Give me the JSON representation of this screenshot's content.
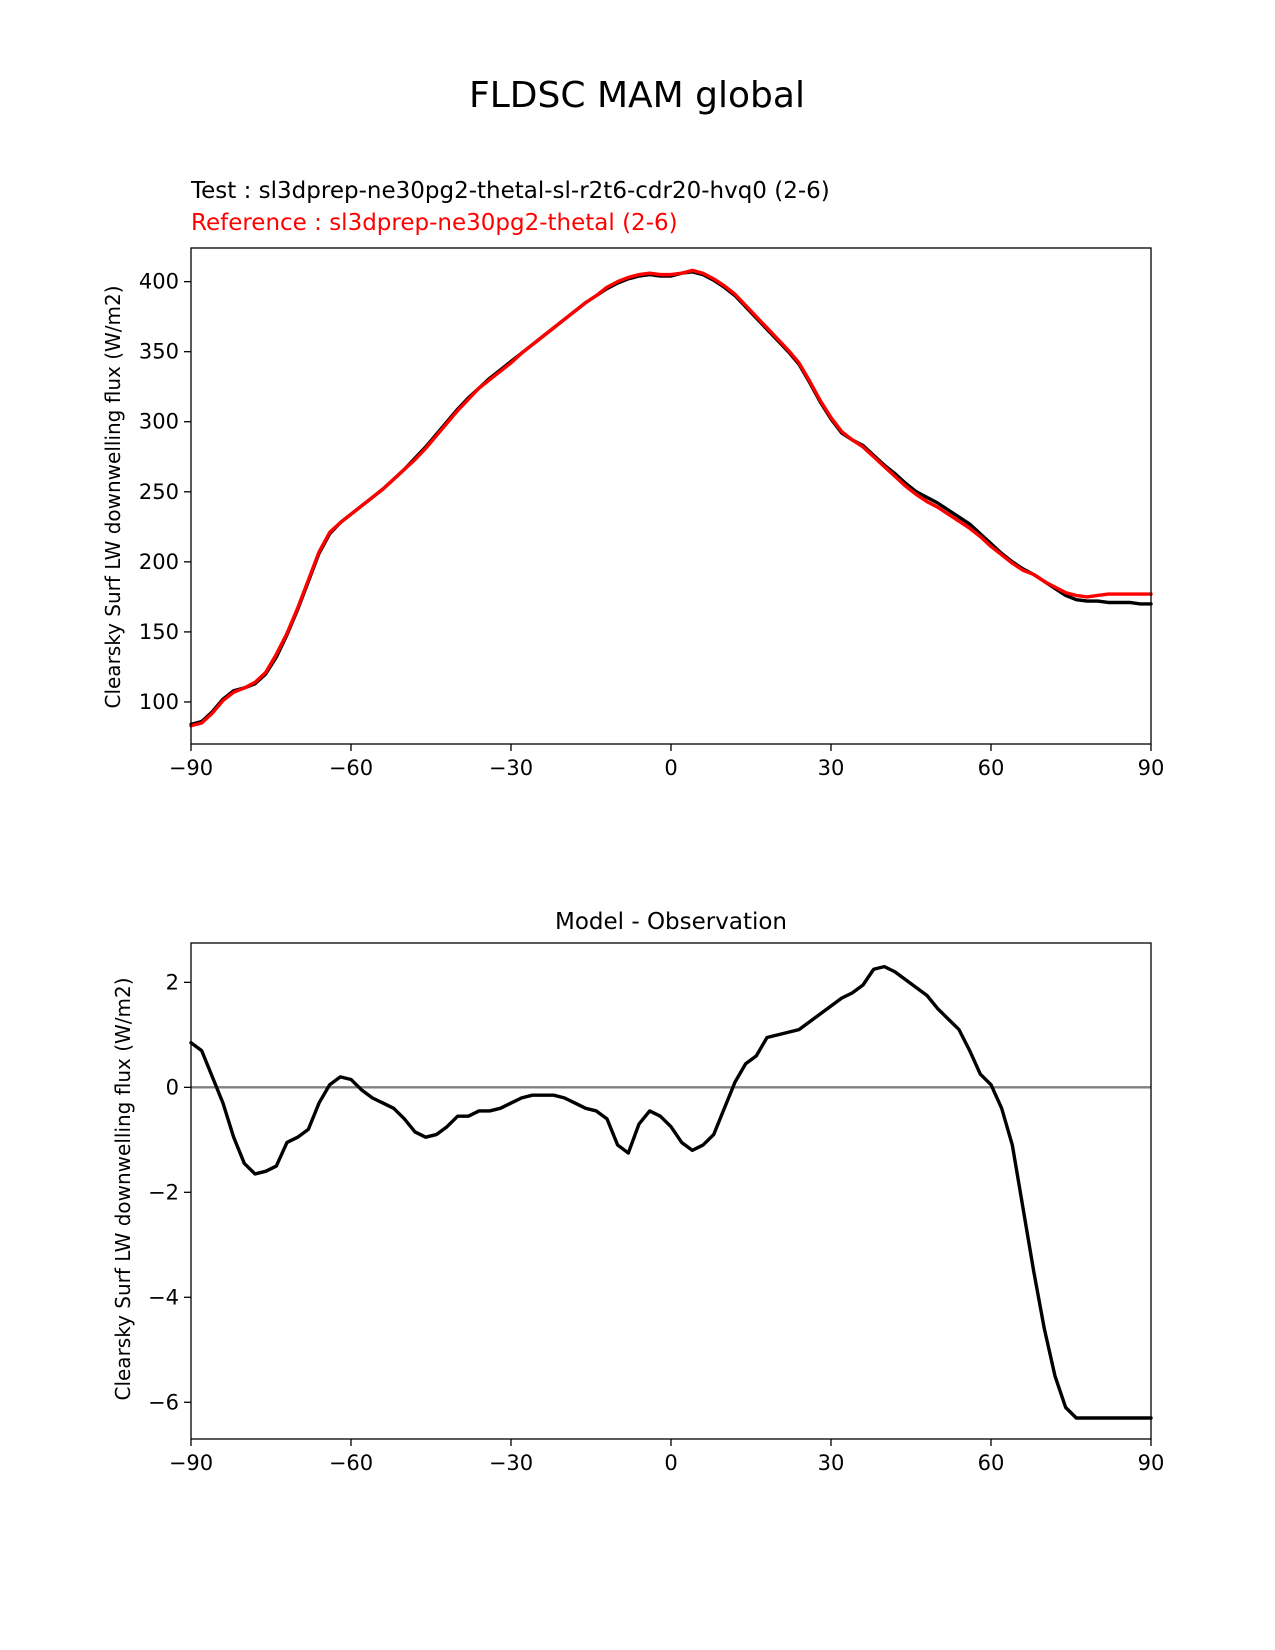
{
  "figure": {
    "title": "FLDSC MAM global"
  },
  "chart_data": [
    {
      "type": "line",
      "title_test": "Test : sl3dprep-ne30pg2-thetal-sl-r2t6-cdr20-hvq0 (2-6)",
      "title_reference": "Reference : sl3dprep-ne30pg2-thetal (2-6)",
      "xlabel": "",
      "ylabel": "Clearsky Surf LW downwelling flux (W/m2)",
      "xlim": [
        -90,
        90
      ],
      "ylim": [
        70,
        424
      ],
      "xticks": [
        -90,
        -60,
        -30,
        0,
        30,
        60,
        90
      ],
      "xtick_labels": [
        "−90",
        "−60",
        "−30",
        "0",
        "30",
        "60",
        "90"
      ],
      "yticks": [
        100,
        150,
        200,
        250,
        300,
        350,
        400
      ],
      "ytick_labels": [
        "100",
        "150",
        "200",
        "250",
        "300",
        "350",
        "400"
      ],
      "colors": {
        "test": "#000000",
        "reference": "#ff0000"
      },
      "x": [
        -90,
        -88,
        -86,
        -84,
        -82,
        -80,
        -78,
        -76,
        -74,
        -72,
        -70,
        -68,
        -66,
        -64,
        -62,
        -60,
        -58,
        -56,
        -54,
        -52,
        -50,
        -48,
        -46,
        -44,
        -42,
        -40,
        -38,
        -36,
        -34,
        -32,
        -30,
        -28,
        -26,
        -24,
        -22,
        -20,
        -18,
        -16,
        -14,
        -12,
        -10,
        -8,
        -6,
        -4,
        -2,
        0,
        2,
        4,
        6,
        8,
        10,
        12,
        14,
        16,
        18,
        20,
        22,
        24,
        26,
        28,
        30,
        32,
        34,
        36,
        38,
        40,
        42,
        44,
        46,
        48,
        50,
        52,
        54,
        56,
        58,
        60,
        62,
        64,
        66,
        68,
        70,
        72,
        74,
        76,
        78,
        80,
        82,
        84,
        86,
        88,
        90
      ],
      "series": [
        {
          "name": "test",
          "values": [
            84,
            86,
            93,
            102,
            108,
            110,
            113,
            120,
            132,
            148,
            166,
            186,
            206,
            220,
            228,
            234,
            240,
            246,
            252,
            259,
            266,
            274,
            282,
            291,
            300,
            309,
            317,
            324,
            331,
            337,
            343,
            349,
            355,
            361,
            367,
            373,
            379,
            385,
            390,
            395,
            399,
            402,
            404,
            405,
            404,
            404,
            406,
            407,
            405,
            401,
            396,
            390,
            382,
            374,
            366,
            358,
            350,
            341,
            328,
            314,
            302,
            292,
            287,
            283,
            276,
            269,
            263,
            256,
            250,
            246,
            242,
            237,
            232,
            227,
            220,
            213,
            206,
            200,
            195,
            191,
            186,
            181,
            176,
            173,
            172,
            172,
            171,
            171,
            171,
            170,
            170
          ]
        },
        {
          "name": "reference",
          "values": [
            83,
            85,
            92,
            101,
            107,
            110,
            114,
            121,
            134,
            149,
            167,
            187,
            207,
            221,
            228,
            234,
            240,
            246,
            252,
            259,
            266,
            273,
            281,
            290,
            299,
            308,
            316,
            324,
            330,
            336,
            342,
            349,
            355,
            361,
            367,
            373,
            379,
            385,
            390,
            396,
            400,
            403,
            405,
            406,
            405,
            405,
            406,
            408,
            406,
            402,
            397,
            391,
            383,
            375,
            367,
            359,
            351,
            342,
            329,
            315,
            303,
            293,
            287,
            282,
            275,
            268,
            261,
            254,
            248,
            243,
            239,
            234,
            229,
            224,
            218,
            211,
            205,
            199,
            194,
            191,
            186,
            182,
            178,
            176,
            175,
            176,
            177,
            177,
            177,
            177,
            177
          ]
        }
      ]
    },
    {
      "type": "line",
      "title": "Model - Observation",
      "xlabel": "",
      "ylabel": "Clearsky Surf LW downwelling flux (W/m2)",
      "xlim": [
        -90,
        90
      ],
      "ylim": [
        -6.7,
        2.75
      ],
      "xticks": [
        -90,
        -60,
        -30,
        0,
        30,
        60,
        90
      ],
      "xtick_labels": [
        "−90",
        "−60",
        "−30",
        "0",
        "30",
        "60",
        "90"
      ],
      "yticks": [
        -6,
        -4,
        -2,
        0,
        2
      ],
      "ytick_labels": [
        "−6",
        "−4",
        "−2",
        "0",
        "2"
      ],
      "zero_line": 0,
      "colors": {
        "diff": "#000000",
        "zero_line": "#808080"
      },
      "x": [
        -90,
        -88,
        -86,
        -84,
        -82,
        -80,
        -78,
        -76,
        -74,
        -72,
        -70,
        -68,
        -66,
        -64,
        -62,
        -60,
        -58,
        -56,
        -54,
        -52,
        -50,
        -48,
        -46,
        -44,
        -42,
        -40,
        -38,
        -36,
        -34,
        -32,
        -30,
        -28,
        -26,
        -24,
        -22,
        -20,
        -18,
        -16,
        -14,
        -12,
        -10,
        -8,
        -6,
        -4,
        -2,
        0,
        2,
        4,
        6,
        8,
        10,
        12,
        14,
        16,
        18,
        20,
        22,
        24,
        26,
        28,
        30,
        32,
        34,
        36,
        38,
        40,
        42,
        44,
        46,
        48,
        50,
        52,
        54,
        56,
        58,
        60,
        62,
        64,
        66,
        68,
        70,
        72,
        74,
        76,
        78,
        80,
        82,
        84,
        86,
        88,
        90
      ],
      "series": [
        {
          "name": "diff",
          "values": [
            0.85,
            0.7,
            0.2,
            -0.3,
            -0.95,
            -1.45,
            -1.65,
            -1.6,
            -1.5,
            -1.05,
            -0.95,
            -0.8,
            -0.3,
            0.05,
            0.2,
            0.15,
            -0.05,
            -0.2,
            -0.3,
            -0.4,
            -0.6,
            -0.85,
            -0.95,
            -0.9,
            -0.75,
            -0.55,
            -0.55,
            -0.45,
            -0.45,
            -0.4,
            -0.3,
            -0.2,
            -0.15,
            -0.15,
            -0.15,
            -0.2,
            -0.3,
            -0.4,
            -0.45,
            -0.6,
            -1.1,
            -1.25,
            -0.7,
            -0.45,
            -0.55,
            -0.75,
            -1.05,
            -1.2,
            -1.1,
            -0.9,
            -0.4,
            0.1,
            0.45,
            0.6,
            0.95,
            1.0,
            1.05,
            1.1,
            1.25,
            1.4,
            1.55,
            1.7,
            1.8,
            1.95,
            2.25,
            2.3,
            2.2,
            2.05,
            1.9,
            1.75,
            1.5,
            1.3,
            1.1,
            0.7,
            0.25,
            0.05,
            -0.4,
            -1.1,
            -2.3,
            -3.5,
            -4.6,
            -5.5,
            -6.1,
            -6.3,
            -6.3,
            -6.3,
            -6.3,
            -6.3,
            -6.3,
            -6.3,
            -6.3
          ]
        }
      ]
    }
  ]
}
